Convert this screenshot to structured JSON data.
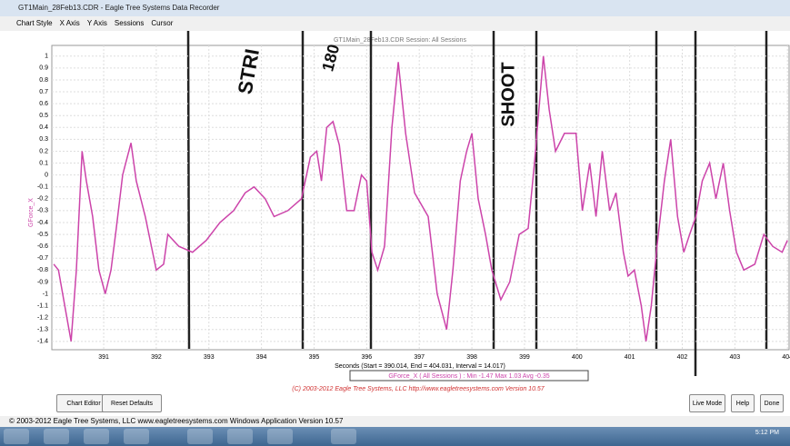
{
  "window": {
    "title": "GT1Main_28Feb13.CDR - Eagle Tree Systems Data Recorder",
    "menu": [
      "Chart Style",
      "X Axis",
      "Y Axis",
      "Sessions",
      "Cursor"
    ]
  },
  "chart_data": {
    "type": "line",
    "title": "GT1Main_28Feb13.CDR Session: All Sessions",
    "y_label": "GForce_X",
    "x_label": "Seconds (Start = 390.014, End = 404.031, Interval = 14.017)",
    "legend_text": "GForce_X ( All Sessions ) : Min -1.47 Max 1.03 Avg -0.35",
    "color": "#cc44aa",
    "x": [
      390.05,
      390.14,
      390.28,
      390.38,
      390.48,
      390.59,
      390.67,
      390.79,
      390.91,
      391.03,
      391.14,
      391.24,
      391.36,
      391.52,
      391.62,
      391.79,
      392.0,
      392.14,
      392.22,
      392.43,
      392.69,
      392.95,
      393.21,
      393.47,
      393.69,
      393.86,
      394.07,
      394.24,
      394.5,
      394.76,
      394.93,
      395.05,
      395.14,
      395.24,
      395.36,
      395.48,
      395.62,
      395.76,
      395.9,
      396.0,
      396.1,
      396.21,
      396.34,
      396.48,
      396.6,
      396.74,
      396.91,
      397.17,
      397.34,
      397.52,
      397.64,
      397.78,
      397.9,
      398.0,
      398.12,
      398.26,
      398.38,
      398.55,
      398.72,
      398.9,
      399.07,
      399.19,
      399.36,
      399.47,
      399.59,
      399.76,
      399.98,
      400.1,
      400.24,
      400.36,
      400.48,
      400.62,
      400.74,
      400.88,
      400.97,
      401.09,
      401.22,
      401.31,
      401.41,
      401.52,
      401.66,
      401.78,
      401.91,
      402.03,
      402.14,
      402.26,
      402.38,
      402.52,
      402.64,
      402.78,
      402.9,
      403.03,
      403.17,
      403.38,
      403.55,
      403.72,
      403.9,
      404.0
    ],
    "values": [
      -0.75,
      -0.8,
      -1.15,
      -1.4,
      -0.8,
      0.2,
      -0.05,
      -0.35,
      -0.8,
      -1.0,
      -0.8,
      -0.45,
      0.0,
      0.27,
      -0.05,
      -0.35,
      -0.8,
      -0.75,
      -0.5,
      -0.6,
      -0.65,
      -0.55,
      -0.4,
      -0.3,
      -0.15,
      -0.1,
      -0.2,
      -0.35,
      -0.3,
      -0.2,
      0.15,
      0.2,
      -0.05,
      0.4,
      0.45,
      0.25,
      -0.3,
      -0.3,
      0.0,
      -0.05,
      -0.65,
      -0.8,
      -0.6,
      0.4,
      0.95,
      0.35,
      -0.15,
      -0.35,
      -1.0,
      -1.3,
      -0.8,
      -0.05,
      0.2,
      0.35,
      -0.2,
      -0.5,
      -0.8,
      -1.05,
      -0.9,
      -0.5,
      -0.45,
      0.1,
      1.0,
      0.55,
      0.2,
      0.35,
      0.35,
      -0.3,
      0.1,
      -0.35,
      0.2,
      -0.3,
      -0.15,
      -0.65,
      -0.85,
      -0.8,
      -1.1,
      -1.4,
      -1.1,
      -0.6,
      -0.05,
      0.3,
      -0.35,
      -0.65,
      -0.5,
      -0.35,
      -0.05,
      0.1,
      -0.2,
      0.1,
      -0.3,
      -0.65,
      -0.8,
      -0.75,
      -0.5,
      -0.6,
      -0.65,
      -0.55
    ],
    "xlim": [
      390.014,
      404.031
    ],
    "xticks": [
      391,
      392,
      393,
      394,
      395,
      396,
      397,
      398,
      399,
      400,
      401,
      402,
      403,
      404
    ],
    "ylim": [
      -1.47,
      1.09
    ],
    "yticks": [
      1,
      0.9,
      0.8,
      0.7,
      0.6,
      0.5,
      0.4,
      0.3,
      0.2,
      0.1,
      0,
      -0.1,
      -0.2,
      -0.3,
      -0.4,
      -0.5,
      -0.6,
      -0.7,
      -0.8,
      -0.9,
      -1,
      -1.1,
      -1.2,
      -1.3,
      -1.4
    ],
    "grid": true,
    "annotations": [
      "STRI",
      "180",
      "SHOOT"
    ]
  },
  "footer": {
    "copyright": "(C) 2003-2012 Eagle Tree Systems, LLC http://www.eagletreesystems.com Version 10.57",
    "buttons_left": [
      "Chart Editor",
      "Reset Defaults"
    ],
    "buttons_right": [
      "Live Mode",
      "Help",
      "Done"
    ],
    "status": "© 2003-2012 Eagle Tree Systems, LLC www.eagletreesystems.com Windows Application Version 10.57",
    "clock": "5:12 PM"
  }
}
